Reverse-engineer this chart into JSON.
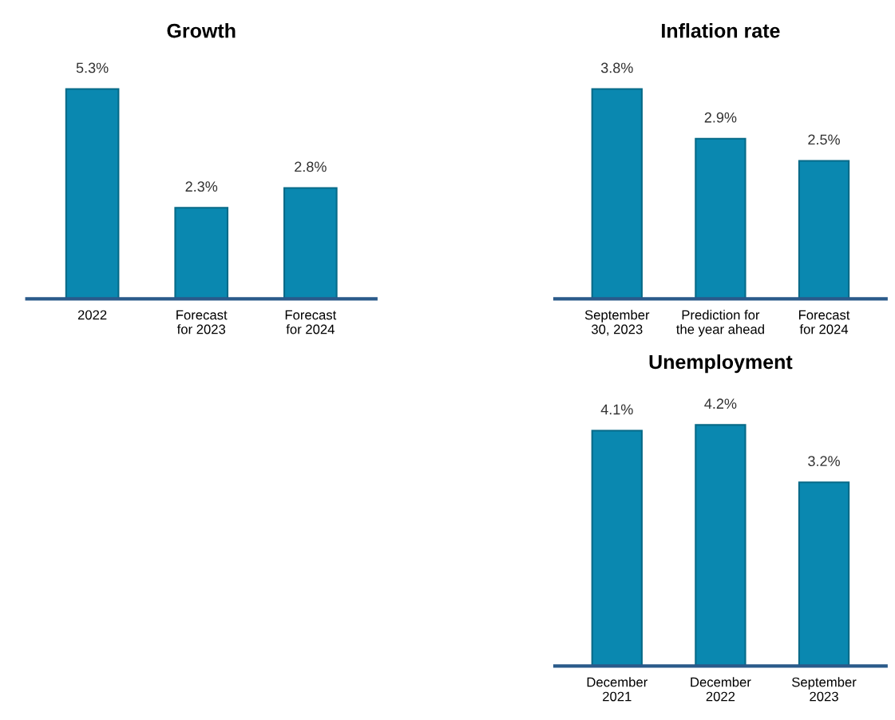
{
  "chart_data": [
    {
      "type": "bar",
      "title": "Growth",
      "categories": [
        "2022",
        "Forecast\nfor 2023",
        "Forecast\nfor 2024"
      ],
      "values": [
        5.3,
        2.3,
        2.8
      ],
      "value_labels": [
        "5.3%",
        "2.3%",
        "2.8%"
      ],
      "color": "#0a88b0"
    },
    {
      "type": "bar",
      "title": "Inflation rate",
      "categories": [
        "September\n30, 2023",
        "Prediction for\nthe year ahead",
        "Forecast\nfor 2024"
      ],
      "values": [
        3.8,
        2.9,
        2.5
      ],
      "value_labels": [
        "3.8%",
        "2.9%",
        "2.5%"
      ],
      "color": "#0a88b0"
    },
    {
      "type": "bar",
      "title": "Unemployment",
      "categories": [
        "December\n2021",
        "December\n2022",
        "September\n2023"
      ],
      "values": [
        4.1,
        4.2,
        3.2
      ],
      "value_labels": [
        "4.1%",
        "4.2%",
        "3.2%"
      ],
      "color": "#0a88b0"
    }
  ]
}
